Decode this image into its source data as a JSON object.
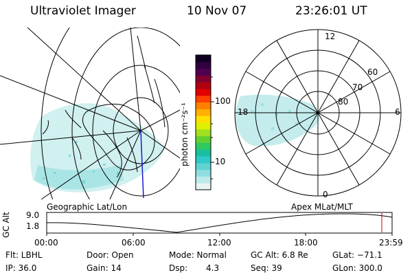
{
  "header": {
    "instrument": "Ultraviolet Imager",
    "date": "10 Nov 07",
    "time": "23:26:01 UT"
  },
  "colorbar": {
    "unit_label": "photon cm⁻²s⁻¹",
    "ticks": [
      "100",
      "10"
    ],
    "scale": "log",
    "colors": [
      "#e8f4f4",
      "#bfeaea",
      "#8fdede",
      "#5fd2d2",
      "#30c8c8",
      "#18c0a0",
      "#30c860",
      "#60d030",
      "#a0e020",
      "#e0f000",
      "#ffe000",
      "#ffb000",
      "#ff8000",
      "#ff4000",
      "#e00000",
      "#b00010",
      "#800030",
      "#500050",
      "#300040",
      "#100020"
    ]
  },
  "left_map": {
    "label": "Geographic Lat/Lon"
  },
  "right_map": {
    "label": "Apex MLat/MLT",
    "mlt_labels": {
      "top": "12",
      "left": "18",
      "right": "6",
      "bottom": "0"
    },
    "lat_labels": [
      "60",
      "70",
      "80"
    ]
  },
  "altitude_plot": {
    "ylabel": "GC Alt",
    "yticks": [
      "9.0",
      "1.8"
    ],
    "xticks": [
      "00:00",
      "06:00",
      "12:00",
      "18:00",
      "23:59"
    ],
    "marker_color": "#c00000"
  },
  "info": {
    "filter": "Flt: LBHL",
    "door": "Door: Open",
    "mode": "Mode: Normal",
    "gc_alt": "GC Alt: 6.8 Re",
    "glat": "GLat: −71.1",
    "ip": "IP: 36.0",
    "gain": "Gain: 14",
    "dsp_label": "Dsp:",
    "dsp_value": "4.3",
    "seq": "Seq: 39",
    "glon": "GLon: 300.0"
  }
}
